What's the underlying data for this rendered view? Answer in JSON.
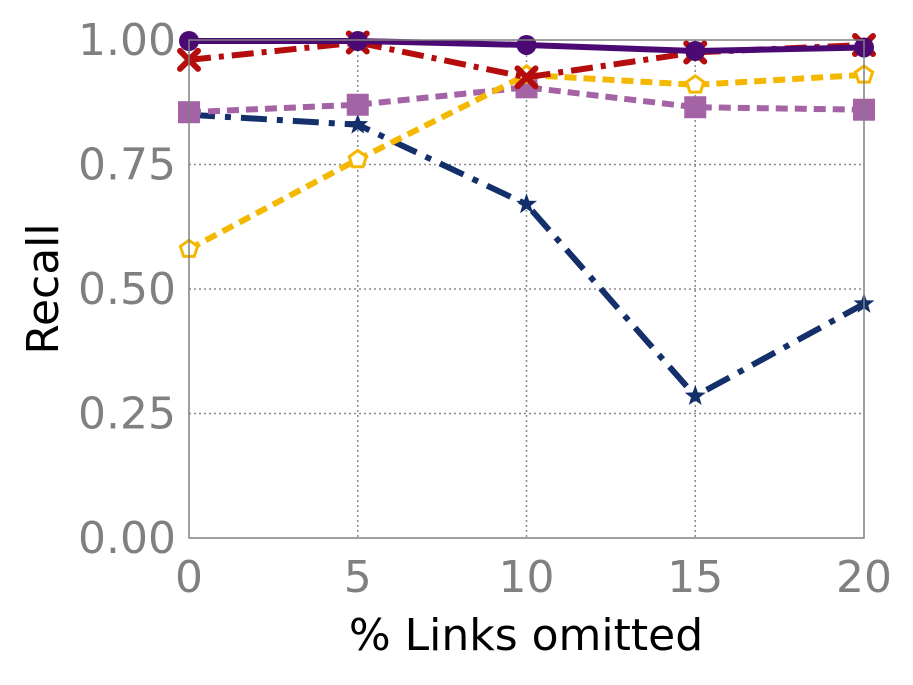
{
  "chart_data": {
    "type": "line",
    "xlabel": "% Links omitted",
    "ylabel": "Recall",
    "x": [
      0,
      5,
      10,
      15,
      20
    ],
    "xlim": [
      0,
      20
    ],
    "ylim": [
      0,
      1
    ],
    "x_tick_labels": [
      "0",
      "5",
      "10",
      "15",
      "20"
    ],
    "y_tick_values": [
      0,
      0.25,
      0.5,
      0.75,
      1.0
    ],
    "y_tick_labels": [
      "0.00",
      "0.25",
      "0.50",
      "0.75",
      "1.00"
    ],
    "grid": true,
    "legend": "none",
    "series": [
      {
        "values": [
          0.85,
          0.83,
          0.67,
          0.285,
          0.47
        ],
        "color": "#14306b",
        "dash": "longdashdot",
        "marker": "star"
      },
      {
        "values": [
          0.855,
          0.87,
          0.905,
          0.865,
          0.86
        ],
        "color": "#a463a4",
        "dash": "dash",
        "marker": "square"
      },
      {
        "values": [
          0.58,
          0.76,
          0.93,
          0.91,
          0.93
        ],
        "color": "#f5b800",
        "dash": "dash",
        "marker": "pentagon"
      },
      {
        "values": [
          0.96,
          0.995,
          0.925,
          0.975,
          0.99
        ],
        "color": "#b50d0d",
        "dash": "dashdot",
        "marker": "x"
      },
      {
        "values": [
          0.998,
          0.998,
          0.99,
          0.978,
          0.985
        ],
        "color": "#4b0a73",
        "dash": "solid",
        "marker": "circle"
      }
    ]
  }
}
